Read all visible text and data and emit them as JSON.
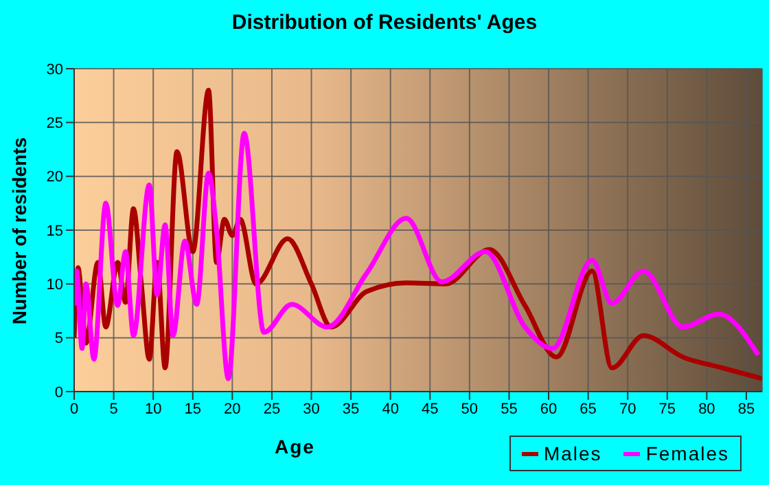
{
  "chart_data": {
    "type": "line",
    "title": "Distribution of Residents' Ages",
    "xlabel": "Age",
    "ylabel": "Number of residents",
    "xlim": [
      0,
      87
    ],
    "xticks": [
      0,
      5,
      10,
      15,
      20,
      25,
      30,
      35,
      40,
      45,
      50,
      55,
      60,
      65,
      70,
      75,
      80,
      85
    ],
    "ylim": [
      0,
      30
    ],
    "yticks": [
      0,
      5,
      10,
      15,
      20,
      25,
      30
    ],
    "grid": true,
    "legend": "bottom right",
    "marker": "none",
    "line_style": "solid",
    "series": [
      {
        "name": "Males",
        "color": "#aa0000",
        "x": [
          0,
          0.5,
          1,
          1.5,
          3,
          4,
          5.5,
          6.5,
          7.5,
          8.5,
          9.5,
          10.5,
          11.5,
          13,
          15,
          17,
          18,
          19,
          20,
          21,
          23,
          27,
          30,
          32.5,
          37,
          42,
          47,
          52.5,
          57,
          61,
          65.5,
          68,
          72,
          77,
          82,
          87
        ],
        "values": [
          5,
          11.5,
          8,
          4.5,
          12,
          6,
          12,
          8.3,
          17,
          10,
          3,
          12,
          2.2,
          22.3,
          13,
          28,
          12,
          16,
          14.5,
          16,
          10,
          14.2,
          10,
          6,
          9.3,
          10.1,
          10,
          13.2,
          8,
          3.2,
          11.2,
          2.2,
          5.2,
          3.2,
          2.2,
          1.2
        ]
      },
      {
        "name": "Females",
        "color": "#ff00ff",
        "x": [
          0,
          0.3,
          1,
          1.5,
          2.5,
          4,
          5.5,
          6.5,
          7.5,
          9.5,
          10.5,
          11.5,
          12.5,
          14,
          15.5,
          17,
          18,
          19.5,
          21.5,
          24,
          27.5,
          32,
          37,
          42,
          46.5,
          52,
          57,
          60.5,
          65.5,
          68,
          72,
          77,
          81.5,
          86.5
        ],
        "values": [
          8,
          11.2,
          4,
          10,
          3,
          17.5,
          8,
          13,
          5.2,
          19.2,
          9,
          15.5,
          5.2,
          14,
          8.1,
          20.3,
          15,
          1.2,
          24,
          5.5,
          8.1,
          6,
          11,
          16.1,
          10.2,
          13,
          6,
          4,
          12.2,
          8.2,
          11.2,
          6,
          7.2,
          3.4
        ]
      }
    ]
  }
}
